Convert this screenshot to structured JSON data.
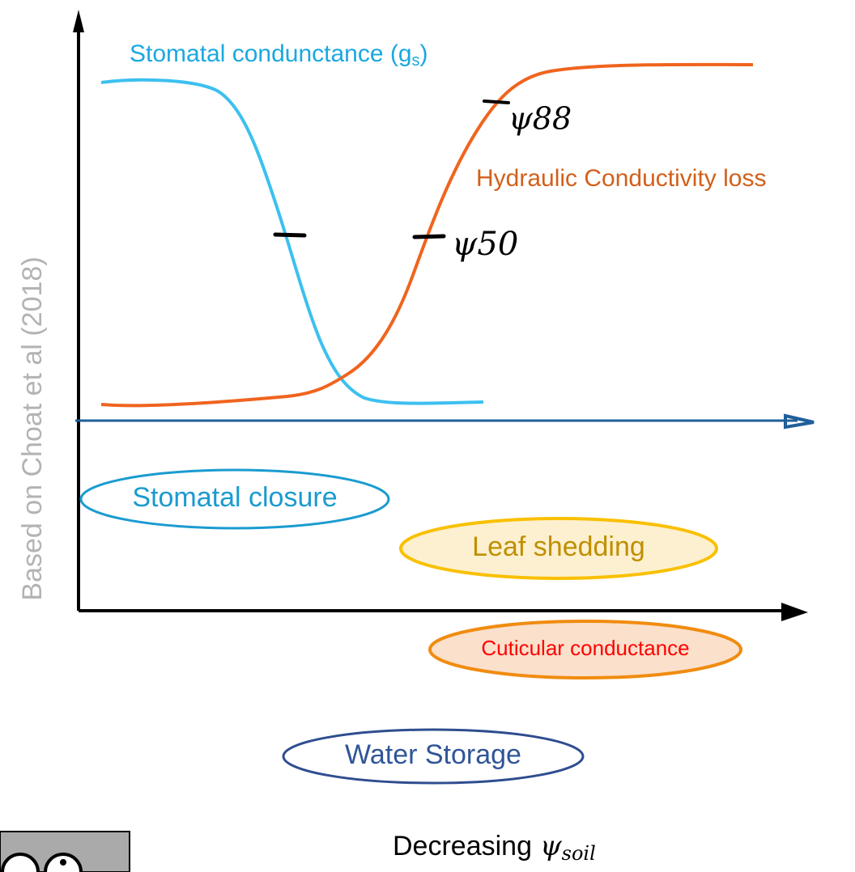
{
  "labels": {
    "stomatal_curve": "Stomatal condunctance (g",
    "stomatal_curve_sub": "s",
    "stomatal_curve_close": ")",
    "hydraulic_curve": "Hydraulic Conductivity loss",
    "psi50": "ψ50",
    "psi88": "ψ88",
    "source": "Based on Choat et al (2018)"
  },
  "stages": [
    "Stomatal closure",
    "Leaf shedding",
    "Cuticular conductance",
    "Water Storage"
  ],
  "x_axis_label": {
    "text": "Decreasing",
    "symbol": "ψ",
    "subscript": "soil"
  }
}
